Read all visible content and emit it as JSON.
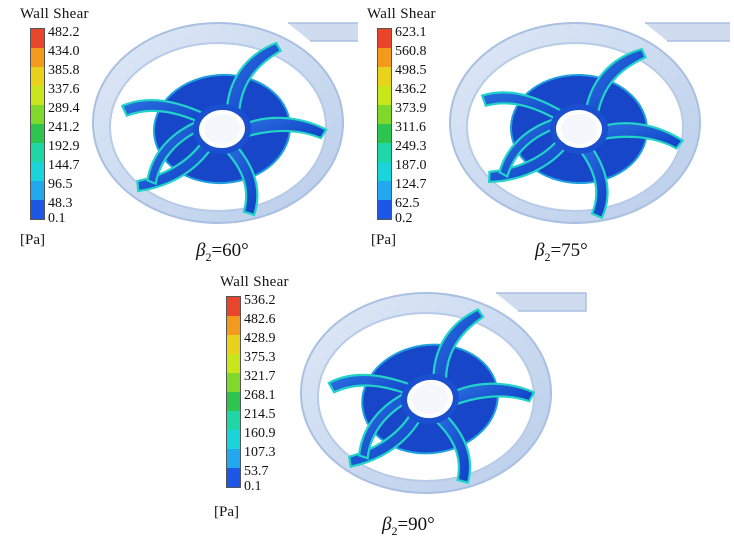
{
  "legend_title": "Wall Shear",
  "unit": "[Pa]",
  "symbol": "β",
  "subscript": "2",
  "colorbar_colors": [
    "#e8452b",
    "#f39a1d",
    "#e8d21c",
    "#c9e61a",
    "#7fd82a",
    "#2dc44f",
    "#1fd6a6",
    "#19d4d9",
    "#22a8ee",
    "#1d57e6"
  ],
  "panels": [
    {
      "id": "a",
      "caption_value": "=60°",
      "ticks": [
        "482.2",
        "434.0",
        "385.8",
        "337.6",
        "289.4",
        "241.2",
        "192.9",
        "144.7",
        "96.5",
        "48.3",
        "0.1"
      ]
    },
    {
      "id": "b",
      "caption_value": "=75°",
      "ticks": [
        "623.1",
        "560.8",
        "498.5",
        "436.2",
        "373.9",
        "311.6",
        "249.3",
        "187.0",
        "124.7",
        "62.5",
        "0.2"
      ]
    },
    {
      "id": "c",
      "caption_value": "=90°",
      "ticks": [
        "536.2",
        "482.6",
        "428.9",
        "375.3",
        "321.7",
        "268.1",
        "214.5",
        "160.9",
        "107.3",
        "53.7",
        "0.1"
      ]
    }
  ]
}
